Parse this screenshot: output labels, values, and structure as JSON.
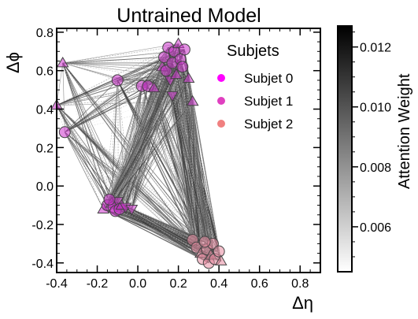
{
  "chart_data": {
    "type": "scatter",
    "title": "Untrained Model",
    "xlabel": "Δη",
    "ylabel": "Δϕ",
    "xlim": [
      -0.4,
      0.9
    ],
    "ylim": [
      -0.45,
      0.82
    ],
    "xticks": [
      "-0.4",
      "-0.2",
      "0.0",
      "0.2",
      "0.4",
      "0.6",
      "0.8"
    ],
    "xtick_values": [
      -0.4,
      -0.2,
      0.0,
      0.2,
      0.4,
      0.6,
      0.8
    ],
    "yticks": [
      "-0.4",
      "-0.2",
      "0.0",
      "0.2",
      "0.4",
      "0.6",
      "0.8"
    ],
    "ytick_values": [
      -0.4,
      -0.2,
      0.0,
      0.2,
      0.4,
      0.6,
      0.8
    ],
    "grid": false,
    "legend": {
      "title": "Subjets",
      "placement": "top-right",
      "entries": [
        {
          "label": "Subjet 0",
          "color": "#ff00ff"
        },
        {
          "label": "Subjet 1",
          "color": "#e040c0"
        },
        {
          "label": "Subjet 2",
          "color": "#f08080"
        }
      ]
    },
    "colorbar": {
      "label": "Attention Weight",
      "range": [
        0.0045,
        0.0127
      ],
      "ticks": [
        "0.006",
        "0.008",
        "0.010",
        "0.012"
      ],
      "tick_values": [
        0.006,
        0.008,
        0.01,
        0.012
      ],
      "colormap": "white-to-black"
    },
    "series": [
      {
        "subjet": 0,
        "color": "#cc33cc",
        "points": [
          {
            "x": -0.37,
            "y": 0.64,
            "marker": "triangle"
          },
          {
            "x": -0.4,
            "y": 0.42,
            "marker": "triangle"
          },
          {
            "x": -0.36,
            "y": 0.28,
            "marker": "circle"
          },
          {
            "x": -0.1,
            "y": 0.55,
            "marker": "circle"
          },
          {
            "x": 0.02,
            "y": 0.52,
            "marker": "circle"
          },
          {
            "x": 0.05,
            "y": 0.52,
            "marker": "circle"
          },
          {
            "x": 0.08,
            "y": 0.51,
            "marker": "triangle"
          },
          {
            "x": 0.12,
            "y": 0.62,
            "marker": "triangle"
          },
          {
            "x": 0.13,
            "y": 0.67,
            "marker": "circle"
          },
          {
            "x": 0.14,
            "y": 0.6,
            "marker": "circle"
          },
          {
            "x": 0.15,
            "y": 0.72,
            "marker": "circle"
          },
          {
            "x": 0.16,
            "y": 0.55,
            "marker": "triangle-down"
          },
          {
            "x": 0.17,
            "y": 0.64,
            "marker": "circle"
          },
          {
            "x": 0.18,
            "y": 0.7,
            "marker": "circle"
          },
          {
            "x": 0.19,
            "y": 0.58,
            "marker": "triangle"
          },
          {
            "x": 0.2,
            "y": 0.74,
            "marker": "triangle"
          },
          {
            "x": 0.21,
            "y": 0.66,
            "marker": "circle"
          },
          {
            "x": 0.22,
            "y": 0.62,
            "marker": "circle"
          },
          {
            "x": 0.23,
            "y": 0.71,
            "marker": "circle"
          },
          {
            "x": 0.25,
            "y": 0.56,
            "marker": "triangle"
          },
          {
            "x": 0.17,
            "y": 0.47,
            "marker": "triangle-down"
          },
          {
            "x": 0.27,
            "y": 0.44,
            "marker": "triangle"
          }
        ]
      },
      {
        "subjet": 1,
        "color": "#cc33cc",
        "points": [
          {
            "x": -0.17,
            "y": -0.12,
            "marker": "triangle"
          },
          {
            "x": -0.15,
            "y": -0.1,
            "marker": "circle"
          },
          {
            "x": -0.13,
            "y": -0.09,
            "marker": "triangle"
          },
          {
            "x": -0.12,
            "y": -0.11,
            "marker": "circle"
          },
          {
            "x": -0.11,
            "y": -0.13,
            "marker": "circle"
          },
          {
            "x": -0.1,
            "y": -0.08,
            "marker": "triangle-down"
          },
          {
            "x": -0.09,
            "y": -0.12,
            "marker": "circle"
          },
          {
            "x": -0.08,
            "y": -0.1,
            "marker": "triangle"
          },
          {
            "x": -0.06,
            "y": -0.11,
            "marker": "triangle-down"
          },
          {
            "x": -0.03,
            "y": -0.12,
            "marker": "triangle-down"
          },
          {
            "x": -0.14,
            "y": -0.07,
            "marker": "circle"
          }
        ]
      },
      {
        "subjet": 2,
        "color": "#e88aa0",
        "points": [
          {
            "x": 0.27,
            "y": -0.28,
            "marker": "circle"
          },
          {
            "x": 0.29,
            "y": -0.32,
            "marker": "circle"
          },
          {
            "x": 0.31,
            "y": -0.35,
            "marker": "triangle"
          },
          {
            "x": 0.32,
            "y": -0.38,
            "marker": "circle"
          },
          {
            "x": 0.34,
            "y": -0.33,
            "marker": "circle"
          },
          {
            "x": 0.35,
            "y": -0.4,
            "marker": "circle"
          },
          {
            "x": 0.36,
            "y": -0.36,
            "marker": "triangle"
          },
          {
            "x": 0.37,
            "y": -0.3,
            "marker": "circle"
          },
          {
            "x": 0.38,
            "y": -0.38,
            "marker": "circle"
          },
          {
            "x": 0.4,
            "y": -0.34,
            "marker": "circle"
          },
          {
            "x": 0.41,
            "y": -0.39,
            "marker": "triangle"
          },
          {
            "x": 0.33,
            "y": -0.29,
            "marker": "circle"
          }
        ]
      }
    ]
  }
}
